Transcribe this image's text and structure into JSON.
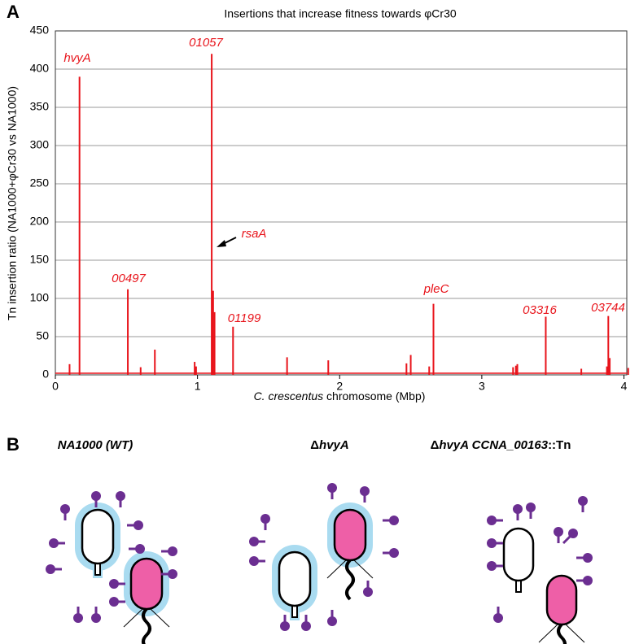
{
  "panel_labels": [
    "A",
    "B"
  ],
  "chart_data": {
    "type": "spike",
    "title": "Insertions that increase fitness towards φCr30",
    "x_label": {
      "species": "C. crescentus",
      "rest": "chromosome (Mbp)"
    },
    "y_label": "Tn insertion ratio (NA1000+φCr30 vs NA1000)",
    "color": "#e8141b",
    "grid": true,
    "x": [
      0.1,
      0.17,
      0.51,
      0.6,
      0.7,
      0.98,
      0.99,
      1.1,
      1.11,
      1.12,
      1.25,
      1.63,
      1.92,
      2.47,
      2.5,
      2.63,
      2.66,
      3.22,
      3.24,
      3.25,
      3.45,
      3.7,
      3.88,
      3.89,
      3.9,
      4.03
    ],
    "values": [
      14,
      390,
      112,
      10,
      33,
      17,
      11,
      420,
      110,
      82,
      63,
      23,
      19,
      15,
      26,
      11,
      93,
      10,
      12,
      14,
      76,
      8,
      11,
      77,
      22,
      9
    ],
    "annotations": [
      "hvyA",
      "00497",
      "01057",
      "rsaA",
      "01199",
      "pleC",
      "03316",
      "03744"
    ],
    "xlim": [
      0,
      4.02
    ],
    "xticks": [
      0,
      1,
      2,
      3,
      4
    ],
    "ylim": [
      0,
      450
    ],
    "yticks": [
      0,
      50,
      100,
      150,
      200,
      250,
      300,
      350,
      400,
      450
    ]
  },
  "panel_b": {
    "titles": [
      {
        "delta": "",
        "name": "NA1000 (WT)",
        "suffix": ""
      },
      {
        "delta": "Δ",
        "name": "hvyA",
        "suffix": ""
      },
      {
        "delta": "Δ",
        "name": "hvyA CCNA_00163",
        "suffix": "::Tn"
      }
    ]
  }
}
